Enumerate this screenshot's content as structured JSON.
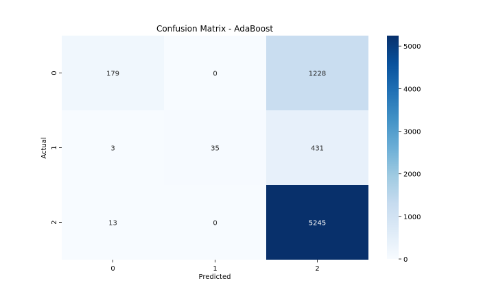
{
  "chart_data": {
    "type": "heatmap",
    "title": "Confusion Matrix - AdaBoost",
    "xlabel": "Predicted",
    "ylabel": "Actual",
    "x_categories": [
      "0",
      "1",
      "2"
    ],
    "y_categories": [
      "0",
      "1",
      "2"
    ],
    "values": [
      [
        179,
        0,
        1228
      ],
      [
        3,
        35,
        431
      ],
      [
        13,
        0,
        5245
      ]
    ],
    "colormap": "Blues",
    "color_range": [
      0,
      5245
    ],
    "colorbar_ticks": [
      0,
      1000,
      2000,
      3000,
      4000,
      5000
    ],
    "colorbar_tick_labels": [
      "0",
      "1000",
      "2000",
      "3000",
      "4000",
      "5000"
    ]
  }
}
